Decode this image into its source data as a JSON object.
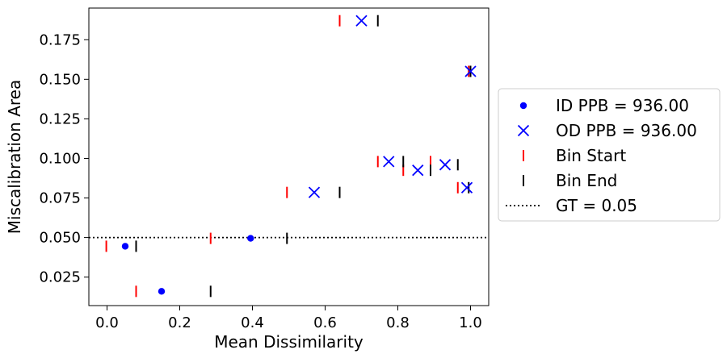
{
  "chart_data": {
    "type": "scatter",
    "title": "",
    "xlabel": "Mean Dissimilarity",
    "ylabel": "Miscalibration Area",
    "xlim": [
      -0.05,
      1.05
    ],
    "ylim": [
      0.007,
      0.195
    ],
    "xticks": [
      "0.0",
      "0.2",
      "0.4",
      "0.6",
      "0.8",
      "1.0"
    ],
    "yticks": [
      "0.025",
      "0.050",
      "0.075",
      "0.100",
      "0.125",
      "0.150",
      "0.175"
    ],
    "grid": false,
    "legend_position": "outside-right",
    "colors": {
      "id": "#0000ff",
      "od": "#0000ff",
      "bin_start": "#ff0000",
      "bin_end": "#000000",
      "gt": "#000000"
    },
    "series": [
      {
        "name": "ID PPB = 936.00",
        "marker": "dot",
        "color": "#0000ff",
        "points": [
          [
            0.05,
            0.0445
          ],
          [
            0.15,
            0.016
          ],
          [
            0.395,
            0.0495
          ]
        ]
      },
      {
        "name": "OD PPB = 936.00",
        "marker": "x",
        "color": "#0000ff",
        "points": [
          [
            0.7,
            0.187
          ],
          [
            1.0,
            0.155
          ],
          [
            0.775,
            0.098
          ],
          [
            0.855,
            0.0925
          ],
          [
            0.93,
            0.096
          ],
          [
            0.57,
            0.0785
          ],
          [
            0.99,
            0.0815
          ]
        ]
      },
      {
        "name": "Bin Start",
        "marker": "vline",
        "color": "#ff0000",
        "points": [
          [
            -0.002,
            0.0445
          ],
          [
            0.08,
            0.016
          ],
          [
            0.285,
            0.0495
          ],
          [
            0.495,
            0.0785
          ],
          [
            0.64,
            0.187
          ],
          [
            0.745,
            0.098
          ],
          [
            0.815,
            0.0925
          ],
          [
            0.89,
            0.098
          ],
          [
            0.965,
            0.0815
          ],
          [
            0.995,
            0.155
          ]
        ]
      },
      {
        "name": "Bin End",
        "marker": "vline",
        "color": "#000000",
        "points": [
          [
            0.08,
            0.0445
          ],
          [
            0.285,
            0.016
          ],
          [
            0.495,
            0.0495
          ],
          [
            0.64,
            0.0785
          ],
          [
            0.745,
            0.187
          ],
          [
            0.815,
            0.098
          ],
          [
            0.89,
            0.0925
          ],
          [
            0.965,
            0.096
          ],
          [
            0.995,
            0.0815
          ],
          [
            1.0,
            0.155
          ]
        ]
      }
    ],
    "reference_line": {
      "name": "GT = 0.05",
      "y": 0.05,
      "style": "dotted",
      "color": "#000000"
    },
    "legend": [
      "ID PPB = 936.00",
      "OD PPB = 936.00",
      "Bin Start",
      "Bin End",
      "GT = 0.05"
    ]
  }
}
